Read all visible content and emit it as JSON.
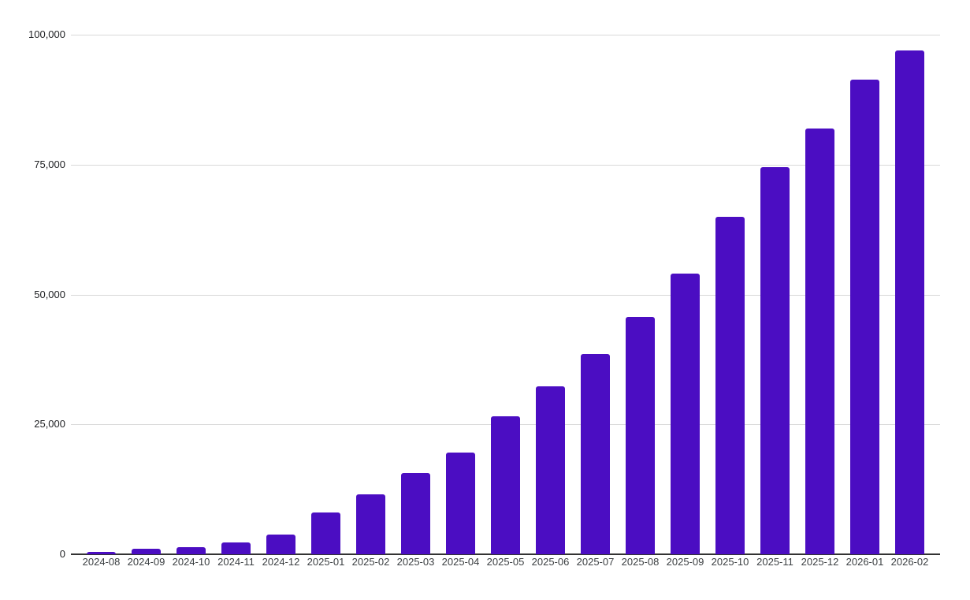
{
  "chart_data": {
    "type": "bar",
    "title": "",
    "xlabel": "",
    "ylabel": "",
    "legend": "none",
    "grid": "horizontal",
    "categories": [
      "2024-08",
      "2024-09",
      "2024-10",
      "2024-11",
      "2024-12",
      "2025-01",
      "2025-02",
      "2025-03",
      "2025-04",
      "2025-05",
      "2025-06",
      "2025-07",
      "2025-08",
      "2025-09",
      "2025-10",
      "2025-11",
      "2025-12",
      "2026-01",
      "2026-02"
    ],
    "values": [
      500,
      1000,
      1400,
      2300,
      3800,
      8000,
      11600,
      15600,
      19600,
      26500,
      32300,
      38500,
      45700,
      54000,
      65000,
      74500,
      82000,
      91300,
      97000
    ],
    "ylim": [
      0,
      100000
    ],
    "y_ticks": [
      0,
      25000,
      50000,
      75000,
      100000
    ],
    "y_tick_labels": [
      "0",
      "25,000",
      "50,000",
      "75,000",
      "100,000"
    ],
    "colors": {
      "bar": "#4B0DC2",
      "gridline": "#D8D8D8",
      "baseline": "#333333",
      "y_tick_label": "#202124",
      "x_tick_label": "#3C4043",
      "background": "#FFFFFF"
    }
  }
}
